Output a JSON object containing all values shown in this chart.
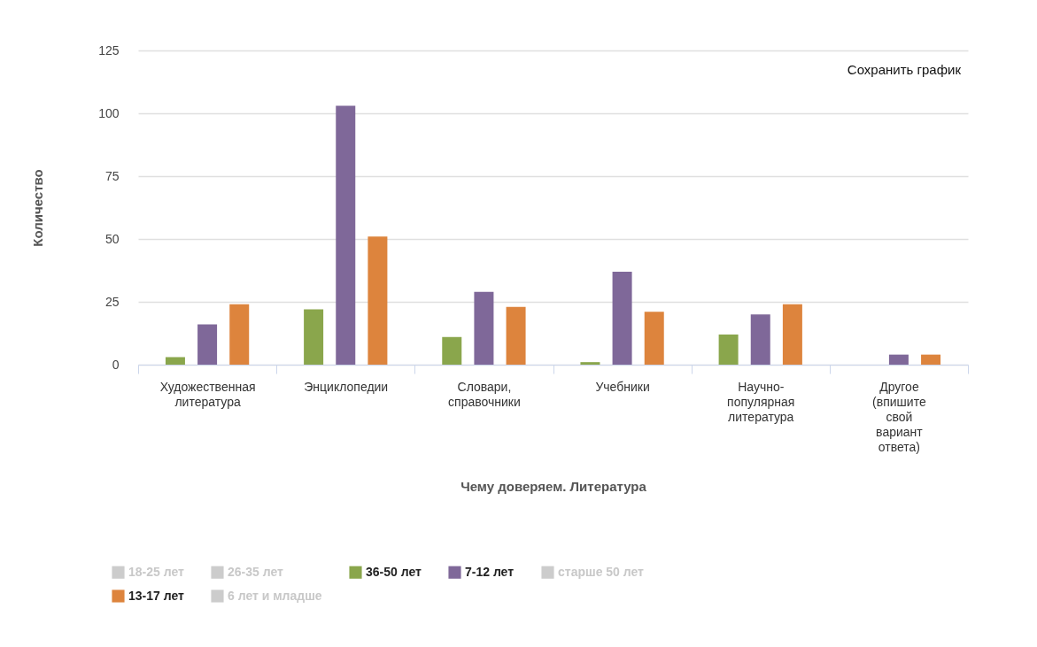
{
  "chart_data": {
    "type": "bar",
    "xlabel": "Чему доверяем. Литература",
    "ylabel": "Количество",
    "categories": [
      "Художественная литература",
      "Энциклопедии",
      "Словари, справочники",
      "Учебники",
      "Научно-популярная литература",
      "Другое (впишите свой вариант ответа)"
    ],
    "series": [
      {
        "name": "18-25 лет",
        "color": "#cccccc",
        "values": [
          null,
          null,
          null,
          null,
          null,
          null
        ]
      },
      {
        "name": "26-35 лет",
        "color": "#cccccc",
        "values": [
          null,
          null,
          null,
          null,
          null,
          null
        ]
      },
      {
        "name": "36-50 лет",
        "color": "#8aa64c",
        "values": [
          3,
          22,
          11,
          1,
          12,
          0
        ]
      },
      {
        "name": "7-12 лет",
        "color": "#7f6899",
        "values": [
          16,
          103,
          29,
          37,
          20,
          4
        ]
      },
      {
        "name": "старше 50 лет",
        "color": "#cccccc",
        "values": [
          null,
          null,
          null,
          null,
          null,
          null
        ]
      },
      {
        "name": "13-17 лет",
        "color": "#dd843d",
        "values": [
          24,
          51,
          23,
          21,
          24,
          4
        ]
      },
      {
        "name": "6 лет и младше",
        "color": "#cccccc",
        "values": [
          null,
          null,
          null,
          null,
          null,
          null
        ]
      }
    ],
    "ylim": [
      0,
      125
    ],
    "yticks": [
      0,
      25,
      50,
      75,
      100,
      125
    ],
    "grid": "y",
    "legend": "bottom",
    "annotations": [
      "Сохранить график"
    ]
  }
}
